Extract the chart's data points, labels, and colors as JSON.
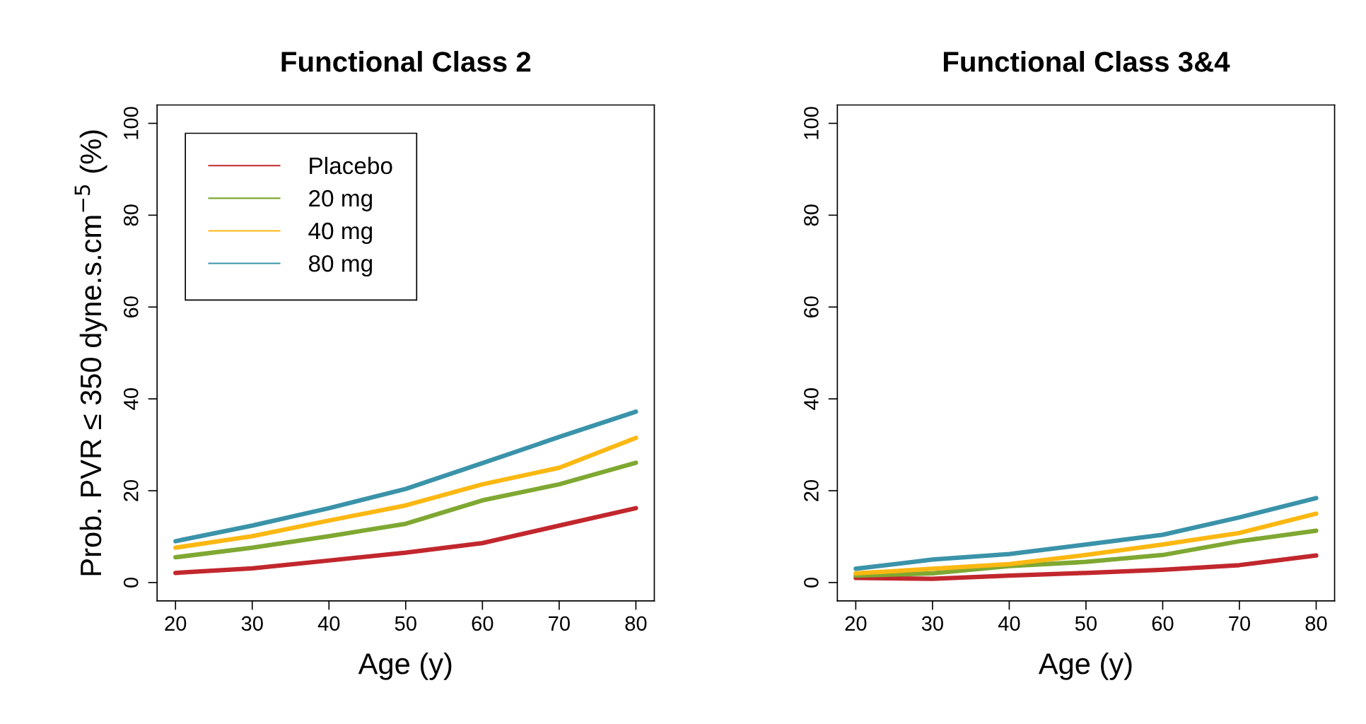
{
  "chart_data": [
    {
      "type": "line",
      "title": "Functional Class 2",
      "xlabel": "Age (y)",
      "ylabel": "Prob. PVR ≤ 350 dyne.s.cm$^{−5}$ (%)",
      "x": [
        20,
        30,
        40,
        50,
        60,
        70,
        80
      ],
      "xlim": [
        17.6,
        82.4
      ],
      "xticks": [
        20,
        30,
        40,
        50,
        60,
        70,
        80
      ],
      "ylim": [
        -4,
        104
      ],
      "yticks": [
        0,
        20,
        40,
        60,
        80,
        100
      ],
      "legend": "top left",
      "grid": false,
      "series": [
        {
          "name": "Placebo",
          "color": "#c1272d",
          "values": [
            2.1,
            3.1,
            4.8,
            6.5,
            8.6,
            12.4,
            16.2
          ]
        },
        {
          "name": "20 mg",
          "color": "#7fa832",
          "values": [
            5.5,
            7.6,
            10.1,
            12.8,
            17.9,
            21.4,
            26.1
          ]
        },
        {
          "name": "40 mg",
          "color": "#fbb812",
          "values": [
            7.6,
            10.1,
            13.5,
            16.8,
            21.4,
            25,
            31.5
          ]
        },
        {
          "name": "80 mg",
          "color": "#3a93a9",
          "values": [
            9,
            12.4,
            16.2,
            20.4,
            26,
            31.7,
            37.2
          ]
        }
      ]
    },
    {
      "type": "line",
      "title": "Functional Class 3&4",
      "xlabel": "Age (y)",
      "x": [
        20,
        30,
        40,
        50,
        60,
        70,
        80
      ],
      "xlim": [
        17.6,
        82.4
      ],
      "xticks": [
        20,
        30,
        40,
        50,
        60,
        70,
        80
      ],
      "ylim": [
        -4,
        104
      ],
      "yticks": [
        0,
        20,
        40,
        60,
        80,
        100
      ],
      "legend": false,
      "grid": false,
      "series": [
        {
          "color": "#c1272d",
          "values": [
            1,
            0.8,
            1.5,
            2.1,
            2.8,
            3.8,
            5.9
          ]
        },
        {
          "color": "#7fa832",
          "values": [
            1.5,
            2,
            3.6,
            4.5,
            6,
            9,
            11.3
          ]
        },
        {
          "color": "#fbb812",
          "values": [
            2,
            3,
            4,
            6,
            8.3,
            10.8,
            15
          ]
        },
        {
          "color": "#3a93a9",
          "values": [
            3,
            5,
            6.2,
            8.3,
            10.4,
            14.2,
            18.4
          ]
        }
      ]
    }
  ]
}
